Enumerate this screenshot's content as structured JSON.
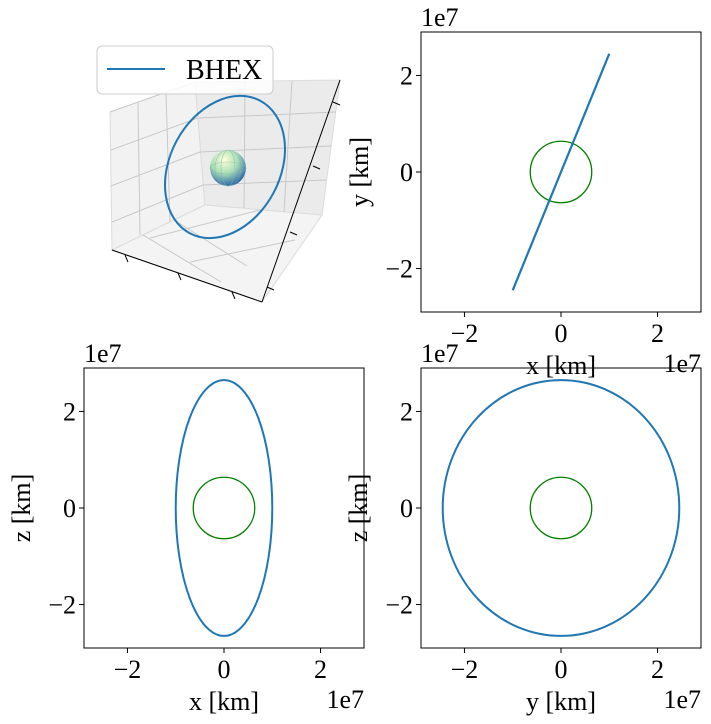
{
  "colors": {
    "orbit": "#1f77b4",
    "earth": "#008000",
    "sphere_top": "#ffffd9",
    "sphere_mid": "#a9ddb7",
    "sphere_bottom": "#225ea8"
  },
  "legend": {
    "label": "BHEX"
  },
  "chart_data": [
    {
      "type": "line",
      "view": "3d",
      "series": [
        {
          "name": "BHEX",
          "shape": "ellipse"
        }
      ],
      "legend_placement": "upper-left",
      "grid": true
    },
    {
      "type": "line",
      "view": "xy",
      "xlabel": "x [km]",
      "ylabel": "y [km]",
      "xlim": [
        -29000000.0,
        29000000.0
      ],
      "ylim": [
        -29000000.0,
        29000000.0
      ],
      "xticks": [
        -2,
        0,
        2
      ],
      "yticks": [
        -2,
        0,
        2
      ],
      "tick_labels": {
        "x": [
          "−2",
          "0",
          "2"
        ],
        "y": [
          "−2",
          "0",
          "2"
        ]
      },
      "offset_text": {
        "x": "1e7",
        "y": "1e7"
      },
      "orbit": {
        "rx": 10000000.0,
        "ry": 24500000.0,
        "shape": "segment",
        "from": [
          -10000000.0,
          -24500000.0
        ],
        "to": [
          10000000.0,
          24500000.0
        ]
      },
      "earth_radius": 6371000.0
    },
    {
      "type": "line",
      "view": "xz",
      "xlabel": "x [km]",
      "ylabel": "z [km]",
      "xlim": [
        -29000000.0,
        29000000.0
      ],
      "ylim": [
        -29000000.0,
        29000000.0
      ],
      "xticks": [
        -2,
        0,
        2
      ],
      "yticks": [
        -2,
        0,
        2
      ],
      "tick_labels": {
        "x": [
          "−2",
          "0",
          "2"
        ],
        "y": [
          "−2",
          "0",
          "2"
        ]
      },
      "offset_text": {
        "x": "1e7",
        "y": "1e7"
      },
      "orbit": {
        "rx": 10000000.0,
        "ry": 26500000.0,
        "shape": "ellipse"
      },
      "earth_radius": 6371000.0
    },
    {
      "type": "line",
      "view": "yz",
      "xlabel": "y [km]",
      "ylabel": "z [km]",
      "xlim": [
        -29000000.0,
        29000000.0
      ],
      "ylim": [
        -29000000.0,
        29000000.0
      ],
      "xticks": [
        -2,
        0,
        2
      ],
      "yticks": [
        -2,
        0,
        2
      ],
      "tick_labels": {
        "x": [
          "−2",
          "0",
          "2"
        ],
        "y": [
          "−2",
          "0",
          "2"
        ]
      },
      "offset_text": {
        "x": "1e7",
        "y": "1e7"
      },
      "orbit": {
        "rx": 24500000.0,
        "ry": 26500000.0,
        "shape": "ellipse"
      },
      "earth_radius": 6371000.0
    }
  ]
}
